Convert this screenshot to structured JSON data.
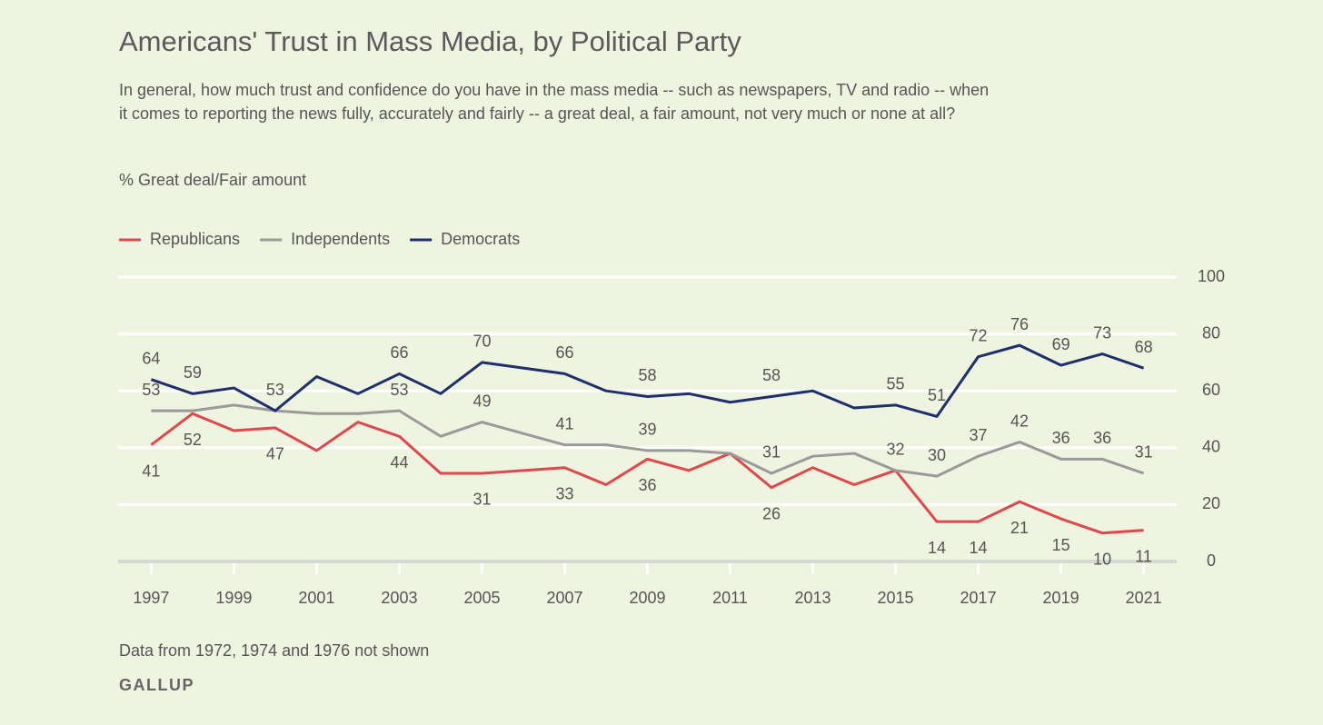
{
  "chart_data": {
    "type": "line",
    "title": "Americans' Trust in Mass Media, by Political Party",
    "subtitle": "In general, how much trust and confidence do you have in the mass media -- such as newspapers, TV and radio -- when it comes to reporting the news fully, accurately and fairly -- a great deal, a fair amount, not very much or none at all?",
    "y_label": "% Great deal/Fair amount",
    "note": "Data from 1972, 1974 and 1976 not shown",
    "source": "GALLUP",
    "x": [
      1997,
      1998,
      1999,
      2000,
      2001,
      2002,
      2003,
      2004,
      2005,
      2006,
      2007,
      2008,
      2009,
      2010,
      2011,
      2012,
      2013,
      2014,
      2015,
      2016,
      2017,
      2018,
      2019,
      2020,
      2021
    ],
    "xlim": [
      1996.2,
      2021.8
    ],
    "xticks": [
      1997,
      1999,
      2001,
      2003,
      2005,
      2007,
      2009,
      2011,
      2013,
      2015,
      2017,
      2019,
      2021
    ],
    "ylim": [
      0,
      100
    ],
    "yticks": [
      0,
      20,
      40,
      60,
      80,
      100
    ],
    "grid": true,
    "legend": "top-left",
    "series": [
      {
        "name": "Republicans",
        "color": "#e0474c",
        "values": [
          41,
          52,
          46,
          47,
          39,
          49,
          44,
          31,
          31,
          32,
          33,
          27,
          36,
          32,
          38,
          26,
          33,
          27,
          32,
          14,
          14,
          21,
          15,
          10,
          11
        ],
        "value_labels": [
          "41",
          "52",
          null,
          "47",
          null,
          null,
          "44",
          null,
          "31",
          null,
          "33",
          null,
          "36",
          null,
          null,
          "26",
          null,
          null,
          null,
          "14",
          "14",
          "21",
          "15",
          "10",
          "11"
        ]
      },
      {
        "name": "Independents",
        "color": "#9a9a9a",
        "values": [
          53,
          53,
          55,
          53,
          52,
          52,
          53,
          44,
          49,
          45,
          41,
          41,
          39,
          39,
          38,
          31,
          37,
          38,
          32,
          30,
          37,
          42,
          36,
          36,
          31
        ],
        "value_labels": [
          "53",
          null,
          null,
          null,
          null,
          null,
          "53",
          null,
          "49",
          null,
          "41",
          null,
          "39",
          null,
          null,
          "31",
          null,
          null,
          "32",
          "30",
          "37",
          "42",
          "36",
          "36",
          "31"
        ]
      },
      {
        "name": "Democrats",
        "color": "#1f2f6b",
        "values": [
          64,
          59,
          61,
          53,
          65,
          59,
          66,
          59,
          70,
          68,
          66,
          60,
          58,
          59,
          56,
          58,
          60,
          54,
          55,
          51,
          72,
          76,
          69,
          73,
          68
        ],
        "value_labels": [
          "64",
          "59",
          null,
          "53",
          null,
          null,
          "66",
          null,
          "70",
          null,
          "66",
          null,
          "58",
          null,
          null,
          "58",
          null,
          null,
          "55",
          "51",
          "72",
          "76",
          "69",
          "73",
          "68"
        ]
      }
    ]
  }
}
